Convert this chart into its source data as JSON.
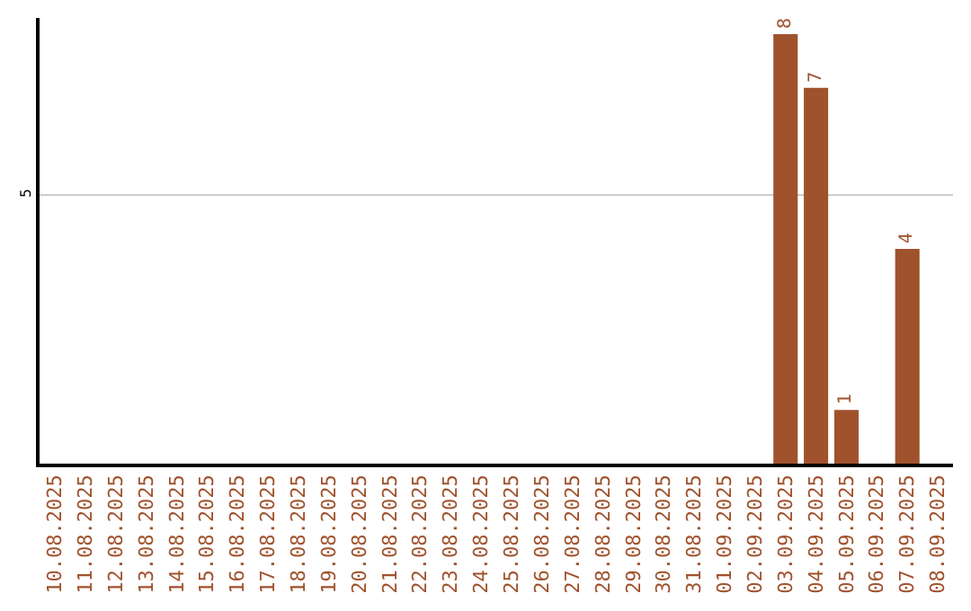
{
  "chart_data": {
    "type": "bar",
    "categories": [
      "10.08.2025",
      "11.08.2025",
      "12.08.2025",
      "13.08.2025",
      "14.08.2025",
      "15.08.2025",
      "16.08.2025",
      "17.08.2025",
      "18.08.2025",
      "19.08.2025",
      "20.08.2025",
      "21.08.2025",
      "22.08.2025",
      "23.08.2025",
      "24.08.2025",
      "25.08.2025",
      "26.08.2025",
      "27.08.2025",
      "28.08.2025",
      "29.08.2025",
      "30.08.2025",
      "31.08.2025",
      "01.09.2025",
      "02.09.2025",
      "03.09.2025",
      "04.09.2025",
      "05.09.2025",
      "06.09.2025",
      "07.09.2025",
      "08.09.2025"
    ],
    "values": [
      null,
      null,
      null,
      null,
      null,
      null,
      null,
      null,
      null,
      null,
      null,
      null,
      null,
      null,
      null,
      null,
      null,
      null,
      null,
      null,
      null,
      null,
      null,
      null,
      8,
      7,
      1,
      null,
      4,
      null
    ],
    "color": "#a0522d",
    "ylim": [
      0,
      8.3
    ],
    "yticks": [
      5
    ],
    "grid": "y",
    "data_labels": true,
    "legend": false
  }
}
